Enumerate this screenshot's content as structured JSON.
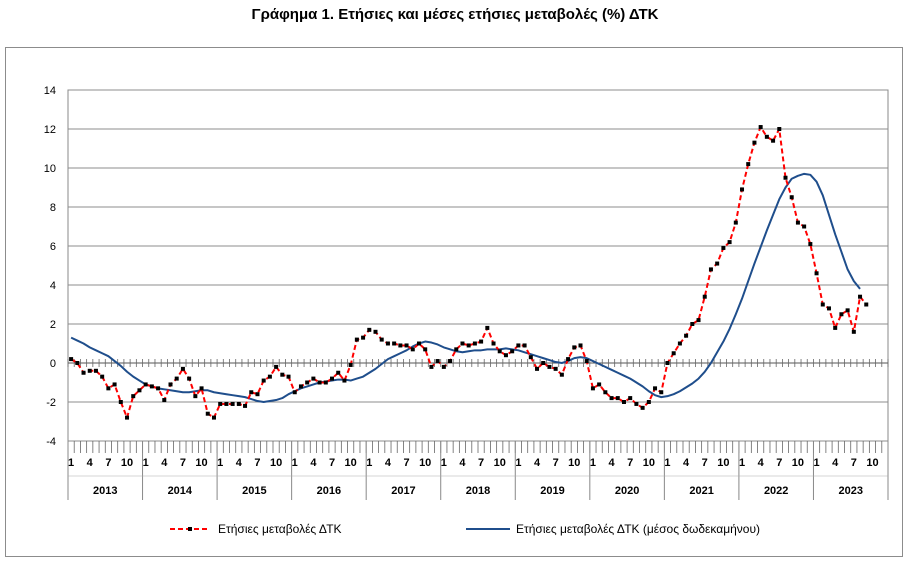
{
  "title": "Γράφημα 1. Ετήσιες και μέσες ετήσιες μεταβολές (%) ΔΤΚ",
  "chart_data": {
    "type": "line",
    "title": "Γράφημα 1. Ετήσιες και μέσες ετήσιες μεταβολές (%) ΔΤΚ",
    "xlabel": "",
    "ylabel": "",
    "ylim": [
      -4,
      14
    ],
    "yticks": [
      "14",
      "12",
      "10",
      "8",
      "6",
      "4",
      "2",
      "0",
      "-2",
      "-4"
    ],
    "month_tick_labels": [
      "1",
      "4",
      "7",
      "10"
    ],
    "years": [
      "2013",
      "2014",
      "2015",
      "2016",
      "2017",
      "2018",
      "2019",
      "2020",
      "2021",
      "2022",
      "2023"
    ],
    "grid": "horizontal",
    "legend_position": "bottom",
    "series": [
      {
        "name": "Ετήσιες μεταβολές ΔΤΚ",
        "color": "#ff0000",
        "marker_color": "#000000",
        "style": "dashed-with-square-markers",
        "values": [
          0.2,
          0.0,
          -0.5,
          -0.4,
          -0.4,
          -0.7,
          -1.3,
          -1.1,
          -2.0,
          -2.8,
          -1.7,
          -1.4,
          -1.1,
          -1.2,
          -1.3,
          -1.9,
          -1.1,
          -0.8,
          -0.3,
          -0.8,
          -1.7,
          -1.3,
          -2.6,
          -2.8,
          -2.1,
          -2.1,
          -2.1,
          -2.1,
          -2.2,
          -1.5,
          -1.6,
          -0.9,
          -0.7,
          -0.2,
          -0.6,
          -0.7,
          -1.5,
          -1.2,
          -1.0,
          -0.8,
          -1.0,
          -1.0,
          -0.8,
          -0.5,
          -0.9,
          -0.1,
          1.2,
          1.3,
          1.7,
          1.6,
          1.2,
          1.0,
          1.0,
          0.9,
          0.9,
          0.7,
          1.0,
          0.7,
          -0.2,
          0.1,
          -0.2,
          0.1,
          0.7,
          1.0,
          0.9,
          1.0,
          1.1,
          1.8,
          1.0,
          0.6,
          0.4,
          0.6,
          0.9,
          0.9,
          0.3,
          -0.3,
          0.0,
          -0.2,
          -0.3,
          -0.6,
          0.2,
          0.8,
          0.9,
          0.1,
          -1.3,
          -1.1,
          -1.5,
          -1.8,
          -1.8,
          -2.0,
          -1.8,
          -2.1,
          -2.3,
          -2.0,
          -1.3,
          -1.5,
          0.0,
          0.5,
          1.0,
          1.4,
          2.0,
          2.2,
          3.4,
          4.8,
          5.1,
          5.9,
          6.2,
          7.2,
          8.9,
          10.2,
          11.3,
          12.1,
          11.6,
          11.4,
          12.0,
          9.5,
          8.5,
          7.2,
          7.0,
          6.1,
          4.6,
          3.0,
          2.8,
          1.8,
          2.5,
          2.7,
          1.6,
          3.4,
          3.0
        ],
        "markers_start_index": 0
      },
      {
        "name": "Ετήσιες μεταβολές ΔΤΚ (μέσος δωδεκαμήνου)",
        "color": "#1f4e8c",
        "style": "solid",
        "values": [
          1.3,
          1.15,
          1.0,
          0.8,
          0.65,
          0.5,
          0.35,
          0.1,
          -0.15,
          -0.45,
          -0.7,
          -0.9,
          -1.1,
          -1.2,
          -1.3,
          -1.35,
          -1.4,
          -1.45,
          -1.5,
          -1.5,
          -1.45,
          -1.4,
          -1.4,
          -1.5,
          -1.55,
          -1.6,
          -1.65,
          -1.7,
          -1.75,
          -1.85,
          -1.95,
          -2.0,
          -1.95,
          -1.9,
          -1.8,
          -1.6,
          -1.45,
          -1.3,
          -1.2,
          -1.1,
          -1.0,
          -0.95,
          -0.9,
          -0.85,
          -0.85,
          -0.9,
          -0.8,
          -0.7,
          -0.5,
          -0.3,
          -0.05,
          0.2,
          0.35,
          0.5,
          0.65,
          0.85,
          1.0,
          1.1,
          1.05,
          0.95,
          0.8,
          0.7,
          0.6,
          0.55,
          0.6,
          0.65,
          0.65,
          0.7,
          0.7,
          0.7,
          0.75,
          0.7,
          0.65,
          0.55,
          0.45,
          0.35,
          0.25,
          0.15,
          0.05,
          0.0,
          0.1,
          0.25,
          0.3,
          0.25,
          0.1,
          -0.05,
          -0.2,
          -0.35,
          -0.5,
          -0.65,
          -0.8,
          -1.0,
          -1.2,
          -1.45,
          -1.65,
          -1.75,
          -1.7,
          -1.6,
          -1.45,
          -1.25,
          -1.05,
          -0.8,
          -0.45,
          0.0,
          0.55,
          1.1,
          1.75,
          2.5,
          3.3,
          4.2,
          5.1,
          5.95,
          6.8,
          7.6,
          8.4,
          9.0,
          9.45,
          9.6,
          9.7,
          9.65,
          9.3,
          8.6,
          7.6,
          6.6,
          5.7,
          4.8,
          4.2,
          3.8
        ],
        "markers_start_index": null
      }
    ]
  }
}
